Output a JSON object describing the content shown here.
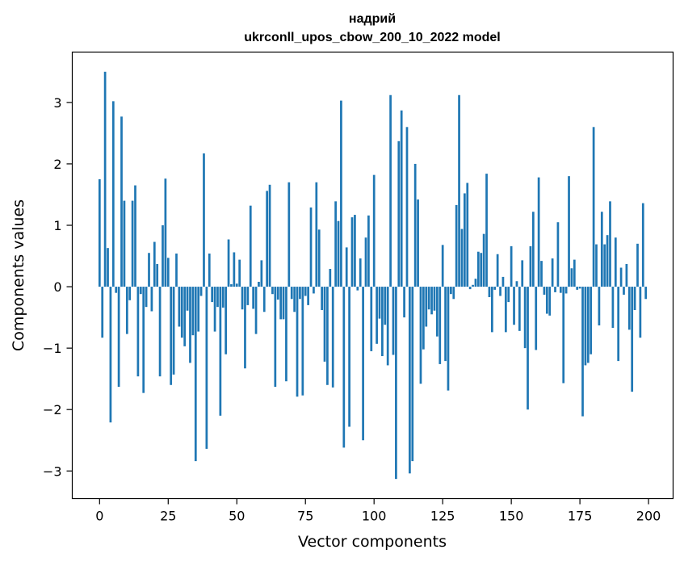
{
  "chart_data": {
    "type": "bar",
    "title": "надрий",
    "subtitle": "ukrconll_upos_cbow_200_10_2022 model",
    "xlabel": "Vector components",
    "ylabel": "Components values",
    "xlim": [
      -9.95,
      208.95
    ],
    "ylim": [
      -3.45,
      3.82
    ],
    "xticks": [
      0,
      25,
      50,
      75,
      100,
      125,
      150,
      175,
      200
    ],
    "xtick_labels": [
      "0",
      "25",
      "50",
      "75",
      "100",
      "125",
      "150",
      "175",
      "200"
    ],
    "yticks": [
      -3,
      -2,
      -1,
      0,
      1,
      2,
      3
    ],
    "ytick_labels": [
      "−3",
      "−2",
      "−1",
      "0",
      "1",
      "2",
      "3"
    ],
    "grid": false,
    "legend": "none",
    "colors": {
      "bar": "#1f77b4",
      "axes": "#000000",
      "background": "#ffffff"
    },
    "x": [
      0,
      1,
      2,
      3,
      4,
      5,
      6,
      7,
      8,
      9,
      10,
      11,
      12,
      13,
      14,
      15,
      16,
      17,
      18,
      19,
      20,
      21,
      22,
      23,
      24,
      25,
      26,
      27,
      28,
      29,
      30,
      31,
      32,
      33,
      34,
      35,
      36,
      37,
      38,
      39,
      40,
      41,
      42,
      43,
      44,
      45,
      46,
      47,
      48,
      49,
      50,
      51,
      52,
      53,
      54,
      55,
      56,
      57,
      58,
      59,
      60,
      61,
      62,
      63,
      64,
      65,
      66,
      67,
      68,
      69,
      70,
      71,
      72,
      73,
      74,
      75,
      76,
      77,
      78,
      79,
      80,
      81,
      82,
      83,
      84,
      85,
      86,
      87,
      88,
      89,
      90,
      91,
      92,
      93,
      94,
      95,
      96,
      97,
      98,
      99,
      100,
      101,
      102,
      103,
      104,
      105,
      106,
      107,
      108,
      109,
      110,
      111,
      112,
      113,
      114,
      115,
      116,
      117,
      118,
      119,
      120,
      121,
      122,
      123,
      124,
      125,
      126,
      127,
      128,
      129,
      130,
      131,
      132,
      133,
      134,
      135,
      136,
      137,
      138,
      139,
      140,
      141,
      142,
      143,
      144,
      145,
      146,
      147,
      148,
      149,
      150,
      151,
      152,
      153,
      154,
      155,
      156,
      157,
      158,
      159,
      160,
      161,
      162,
      163,
      164,
      165,
      166,
      167,
      168,
      169,
      170,
      171,
      172,
      173,
      174,
      175,
      176,
      177,
      178,
      179,
      180,
      181,
      182,
      183,
      184,
      185,
      186,
      187,
      188,
      189,
      190,
      191,
      192,
      193,
      194,
      195,
      196,
      197,
      198,
      199
    ],
    "values": [
      1.75,
      -0.83,
      3.5,
      0.63,
      -2.21,
      3.02,
      -0.1,
      -1.63,
      2.77,
      1.4,
      -0.77,
      -0.22,
      1.4,
      1.65,
      -1.46,
      -0.12,
      -1.73,
      -0.33,
      0.55,
      -0.4,
      0.73,
      0.37,
      -1.46,
      1.0,
      1.76,
      0.47,
      -1.6,
      -1.43,
      0.54,
      -0.65,
      -0.83,
      -0.97,
      -0.39,
      -1.24,
      -0.79,
      -2.84,
      -0.73,
      -0.15,
      2.17,
      -2.64,
      0.54,
      -0.25,
      -0.73,
      -0.33,
      -2.1,
      -0.34,
      -1.1,
      0.77,
      0.04,
      0.56,
      0.05,
      0.44,
      -0.37,
      -1.33,
      -0.3,
      1.32,
      -0.36,
      -0.77,
      0.08,
      0.43,
      -0.41,
      1.56,
      1.66,
      -0.12,
      -1.63,
      -0.21,
      -0.53,
      -0.53,
      -1.54,
      1.7,
      -0.2,
      -0.41,
      -1.79,
      -0.2,
      -1.77,
      -0.15,
      -0.3,
      1.29,
      -0.11,
      1.7,
      0.93,
      -0.38,
      -1.22,
      -1.6,
      0.29,
      -1.64,
      1.39,
      1.07,
      3.03,
      -2.62,
      0.64,
      -2.28,
      1.13,
      1.17,
      -0.06,
      0.46,
      -2.5,
      0.8,
      1.16,
      -1.05,
      1.82,
      -0.93,
      -0.52,
      -1.13,
      -0.62,
      -1.28,
      3.12,
      -1.11,
      -3.13,
      2.37,
      2.87,
      -0.5,
      2.6,
      -3.04,
      -2.84,
      2.0,
      1.42,
      -1.58,
      -1.02,
      -0.65,
      -0.37,
      -0.45,
      -0.39,
      -0.81,
      -1.26,
      0.68,
      -1.21,
      -1.69,
      -0.12,
      -0.2,
      1.33,
      3.12,
      0.94,
      1.52,
      1.69,
      -0.04,
      0.03,
      0.13,
      0.57,
      0.55,
      0.86,
      1.84,
      -0.17,
      -0.74,
      -0.05,
      0.53,
      -0.15,
      0.16,
      -0.74,
      -0.25,
      0.66,
      -0.62,
      0.09,
      -0.72,
      0.43,
      -1.0,
      -2.0,
      0.66,
      1.22,
      -1.03,
      1.78,
      0.42,
      -0.13,
      -0.44,
      -0.47,
      0.46,
      -0.09,
      1.05,
      -0.1,
      -1.57,
      -0.11,
      1.8,
      0.3,
      0.44,
      -0.05,
      -0.03,
      -2.11,
      -1.28,
      -1.24,
      -1.1,
      2.6,
      0.69,
      -0.63,
      1.22,
      0.69,
      0.84,
      1.39,
      -0.67,
      0.8,
      -1.21,
      0.31,
      -0.13,
      0.37,
      -0.7,
      -1.71,
      -0.38,
      0.7,
      -0.83,
      1.36,
      -0.2
    ]
  }
}
